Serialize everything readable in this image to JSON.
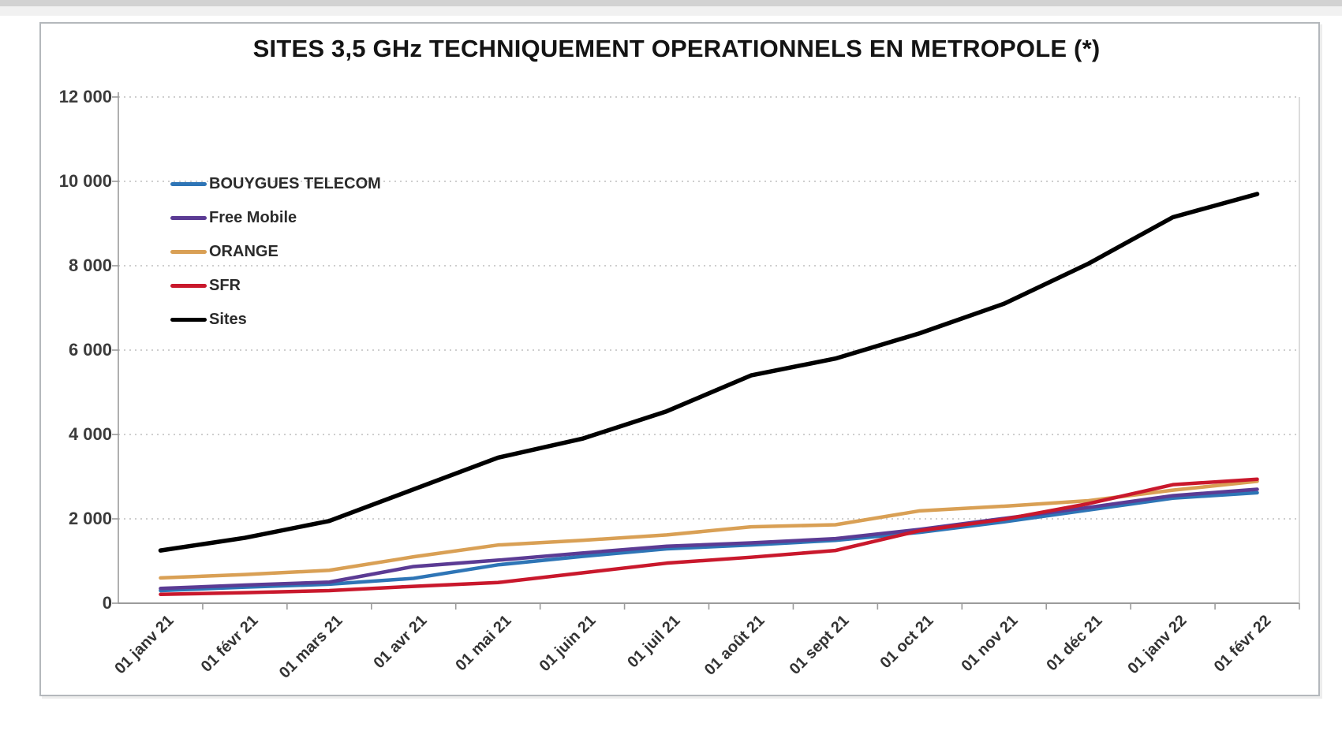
{
  "window": {
    "top_strip": true
  },
  "chart_data": {
    "type": "line",
    "title": "SITES 3,5 GHz TECHNIQUEMENT OPERATIONNELS EN METROPOLE (*)",
    "xlabel": "",
    "ylabel": "",
    "ylim": [
      0,
      12000
    ],
    "ytick_step": 2000,
    "ytick_labels": [
      "0",
      "2 000",
      "4 000",
      "6 000",
      "8 000",
      "10 000",
      "12 000"
    ],
    "grid": "horizontal-dashed",
    "legend_position": "upper-left-inside",
    "categories": [
      "01 janv 21",
      "01 févr 21",
      "01 mars 21",
      "01 avr 21",
      "01 mai 21",
      "01 juin 21",
      "01 juil 21",
      "01 août 21",
      "01 sept 21",
      "01 oct 21",
      "01 nov 21",
      "01 déc 21",
      "01 janv 22",
      "01 févr 22"
    ],
    "series": [
      {
        "name": "BOUYGUES TELECOM",
        "color": "#2E75B6",
        "values": [
          300,
          380,
          450,
          590,
          910,
          1110,
          1290,
          1380,
          1490,
          1680,
          1930,
          2210,
          2490,
          2620
        ]
      },
      {
        "name": "Free Mobile",
        "color": "#5B3B94",
        "values": [
          350,
          430,
          500,
          870,
          1020,
          1190,
          1350,
          1430,
          1530,
          1750,
          2010,
          2270,
          2550,
          2700
        ]
      },
      {
        "name": "ORANGE",
        "color": "#D9A055",
        "values": [
          600,
          680,
          780,
          1100,
          1380,
          1490,
          1620,
          1810,
          1860,
          2190,
          2300,
          2430,
          2680,
          2890
        ]
      },
      {
        "name": "SFR",
        "color": "#C9182C",
        "values": [
          210,
          250,
          300,
          400,
          490,
          720,
          950,
          1090,
          1250,
          1720,
          1990,
          2360,
          2810,
          2940
        ]
      },
      {
        "name": "Sites",
        "color": "#000000",
        "values": [
          1250,
          1550,
          1950,
          2700,
          3450,
          3900,
          4550,
          5400,
          5800,
          6400,
          7100,
          8050,
          9150,
          9700
        ]
      }
    ],
    "axis_colors": {
      "axis": "#9b9b9b",
      "grid": "#bdbdbd",
      "plot_right_border": "#cccccc"
    }
  }
}
